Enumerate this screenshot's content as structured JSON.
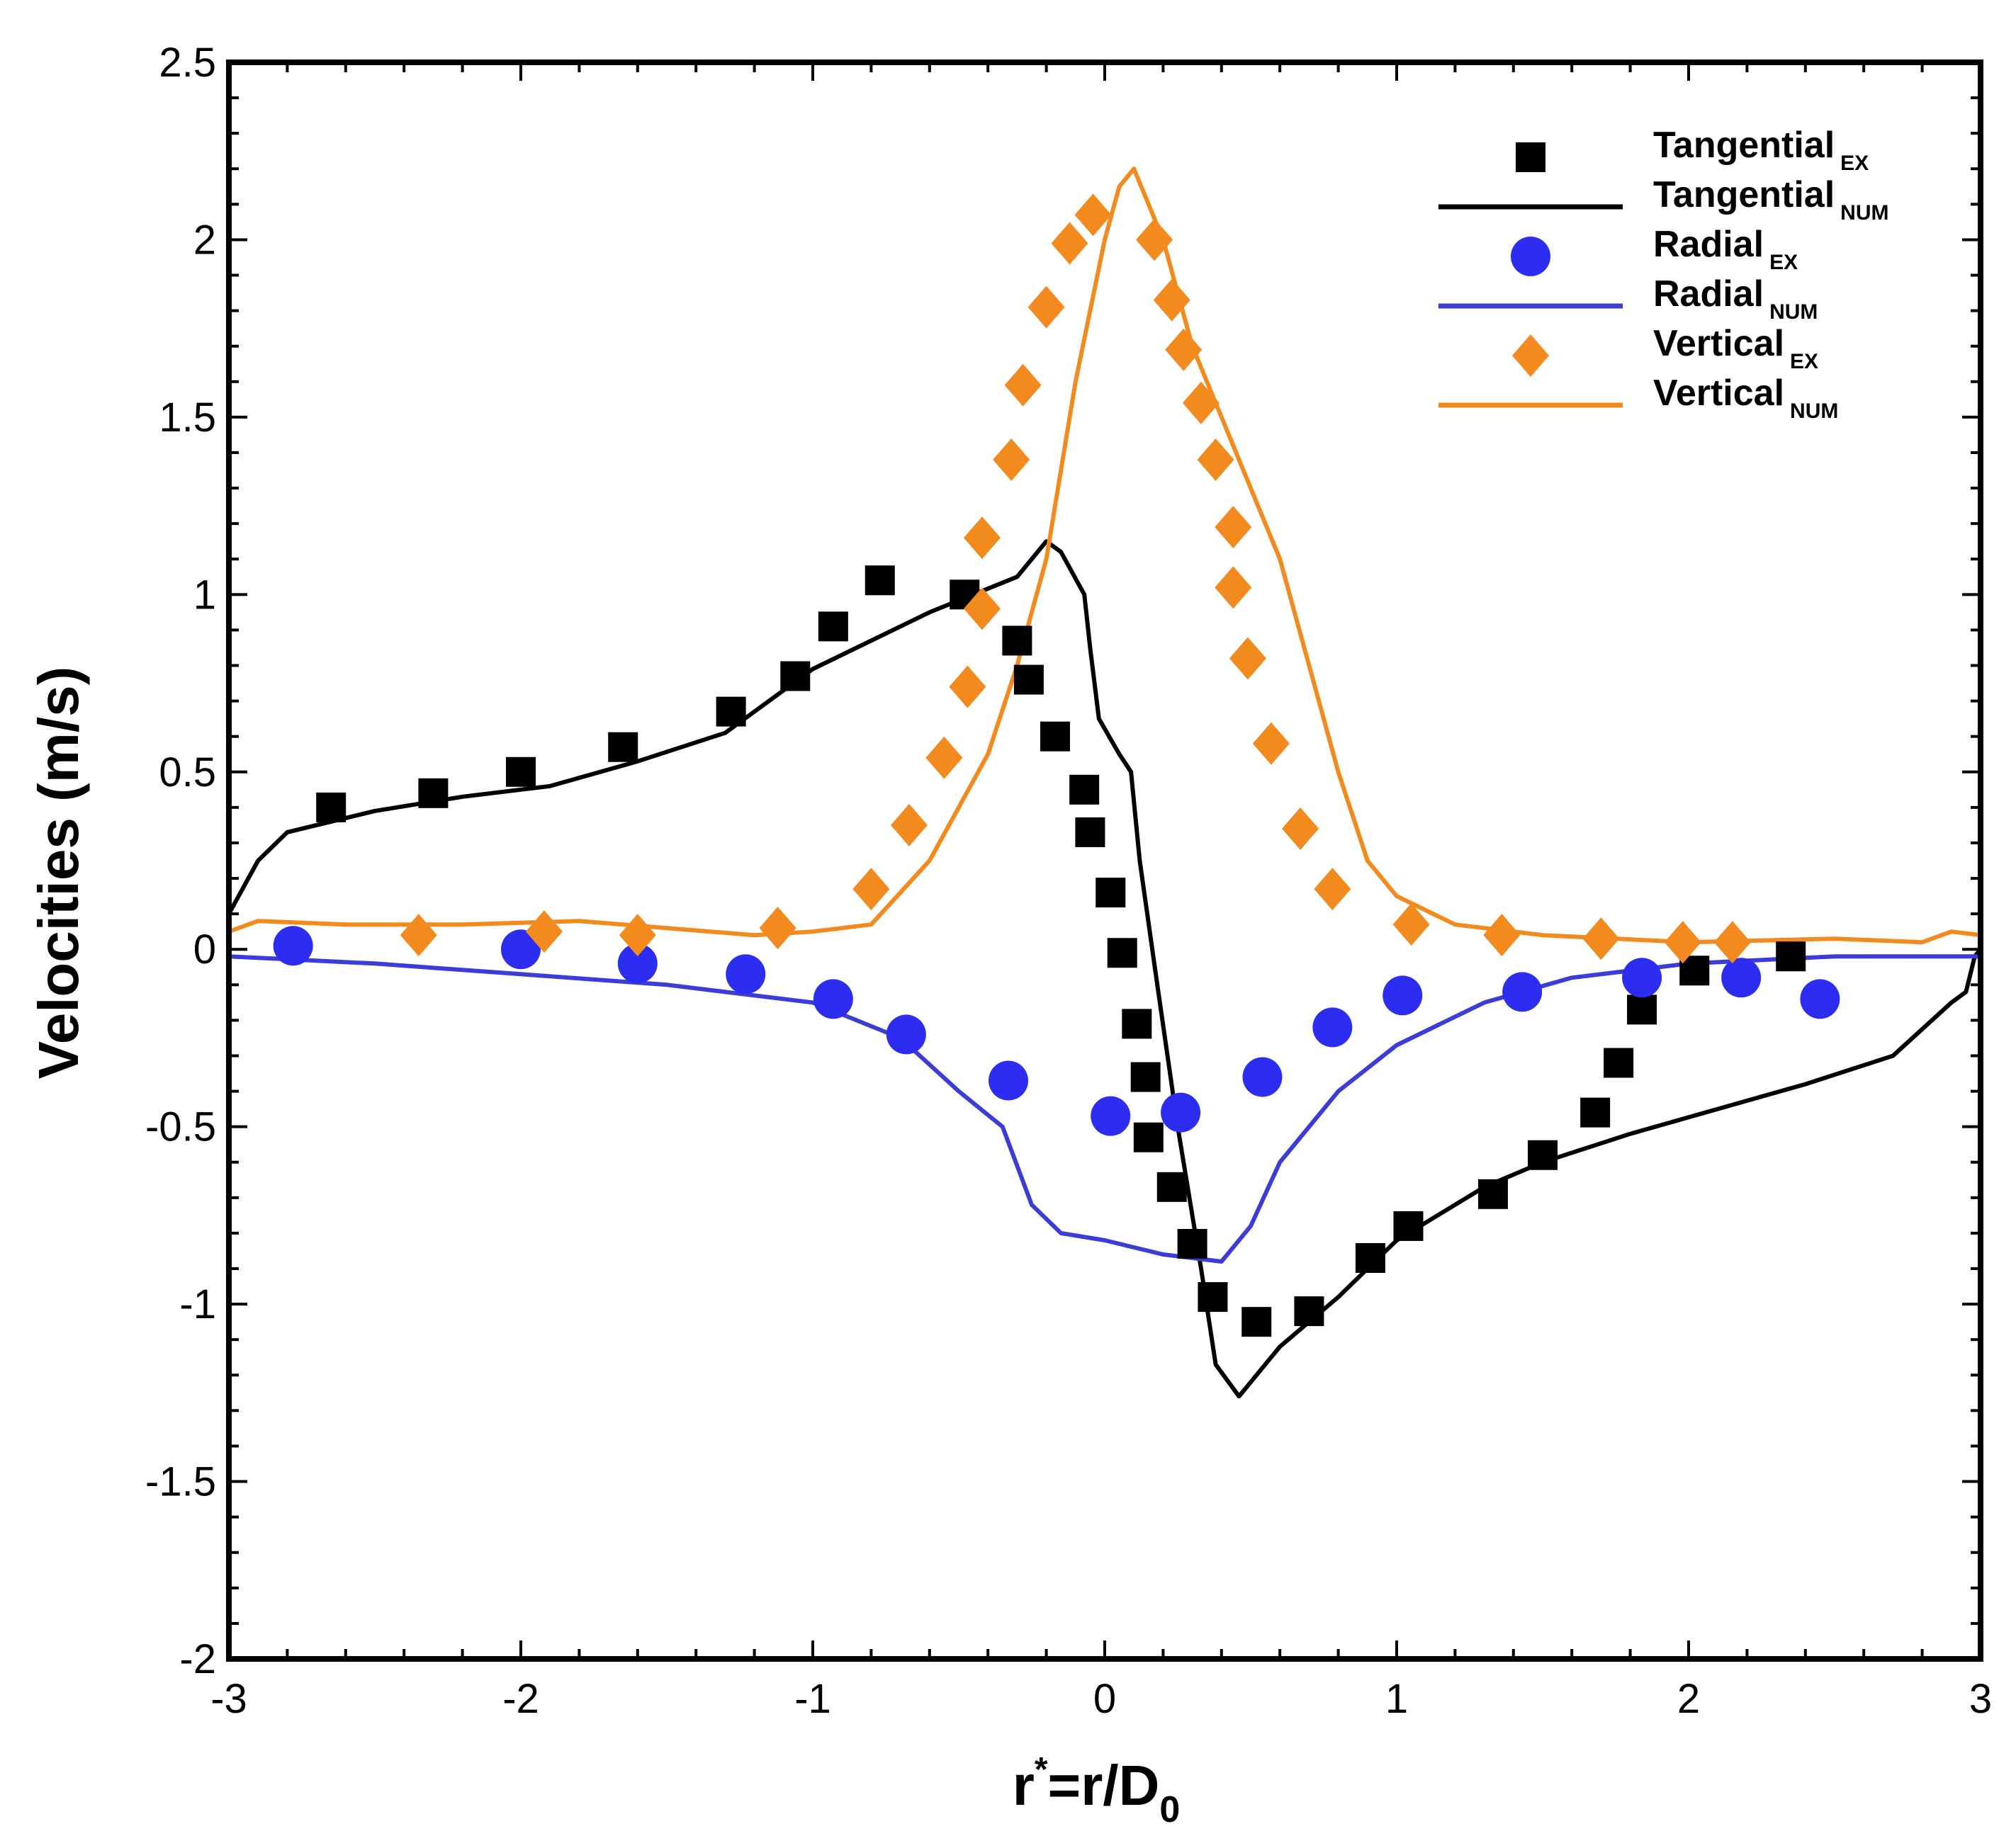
{
  "chart_data": {
    "type": "scatter",
    "xlabel": {
      "main": "r",
      "sup": "*",
      "mid": "=r/D",
      "sub": "0"
    },
    "ylabel": "Velocities (m/s)",
    "xlim": [
      -3,
      3
    ],
    "ylim": [
      -2,
      2.5
    ],
    "xticks": [
      "-3",
      "-2",
      "-1",
      "0",
      "1",
      "2",
      "3"
    ],
    "yticks": [
      "2.5",
      "2",
      "1.5",
      "1",
      "0.5",
      "0",
      "-0.5",
      "-1",
      "-1.5",
      "-2"
    ],
    "grid": false,
    "legend_position": "top-right",
    "series": [
      {
        "name": "Tangential",
        "name_sub": "EX",
        "kind": "marker",
        "marker": "square",
        "color": "#000000",
        "points": [
          [
            -2.65,
            0.4
          ],
          [
            -2.3,
            0.44
          ],
          [
            -2.0,
            0.5
          ],
          [
            -1.65,
            0.57
          ],
          [
            -1.28,
            0.67
          ],
          [
            -1.06,
            0.77
          ],
          [
            -0.93,
            0.91
          ],
          [
            -0.77,
            1.04
          ],
          [
            -0.48,
            1.0
          ],
          [
            -0.3,
            0.87
          ],
          [
            -0.26,
            0.76
          ],
          [
            -0.17,
            0.6
          ],
          [
            -0.07,
            0.45
          ],
          [
            -0.05,
            0.33
          ],
          [
            0.02,
            0.16
          ],
          [
            0.06,
            -0.01
          ],
          [
            0.11,
            -0.21
          ],
          [
            0.14,
            -0.36
          ],
          [
            0.15,
            -0.53
          ],
          [
            0.23,
            -0.67
          ],
          [
            0.3,
            -0.83
          ],
          [
            0.37,
            -0.98
          ],
          [
            0.52,
            -1.05
          ],
          [
            0.7,
            -1.02
          ],
          [
            0.91,
            -0.87
          ],
          [
            1.04,
            -0.78
          ],
          [
            1.33,
            -0.69
          ],
          [
            1.5,
            -0.58
          ],
          [
            1.68,
            -0.46
          ],
          [
            1.76,
            -0.32
          ],
          [
            1.84,
            -0.17
          ],
          [
            2.02,
            -0.06
          ],
          [
            2.35,
            -0.02
          ]
        ]
      },
      {
        "name": "Tangential",
        "name_sub": "NUM",
        "kind": "line",
        "color": "#000000",
        "points": [
          [
            -3.0,
            0.1
          ],
          [
            -2.9,
            0.25
          ],
          [
            -2.8,
            0.33
          ],
          [
            -2.5,
            0.39
          ],
          [
            -2.2,
            0.43
          ],
          [
            -1.9,
            0.46
          ],
          [
            -1.6,
            0.53
          ],
          [
            -1.3,
            0.61
          ],
          [
            -1.0,
            0.79
          ],
          [
            -0.6,
            0.95
          ],
          [
            -0.3,
            1.05
          ],
          [
            -0.2,
            1.15
          ],
          [
            -0.15,
            1.12
          ],
          [
            -0.07,
            1.0
          ],
          [
            -0.05,
            0.85
          ],
          [
            -0.02,
            0.65
          ],
          [
            0.05,
            0.55
          ],
          [
            0.09,
            0.5
          ],
          [
            0.12,
            0.25
          ],
          [
            0.18,
            -0.1
          ],
          [
            0.25,
            -0.5
          ],
          [
            0.33,
            -0.9
          ],
          [
            0.38,
            -1.17
          ],
          [
            0.46,
            -1.26
          ],
          [
            0.6,
            -1.12
          ],
          [
            0.8,
            -0.98
          ],
          [
            1.0,
            -0.82
          ],
          [
            1.3,
            -0.67
          ],
          [
            1.5,
            -0.6
          ],
          [
            1.8,
            -0.52
          ],
          [
            2.1,
            -0.45
          ],
          [
            2.4,
            -0.38
          ],
          [
            2.7,
            -0.3
          ],
          [
            2.9,
            -0.15
          ],
          [
            2.95,
            -0.12
          ],
          [
            2.98,
            -0.02
          ],
          [
            3.0,
            0.0
          ]
        ]
      },
      {
        "name": "Radial",
        "name_sub": "EX",
        "kind": "marker",
        "marker": "circle",
        "color": "#2d2df2",
        "points": [
          [
            -2.78,
            0.01
          ],
          [
            -2.0,
            0.0
          ],
          [
            -1.6,
            -0.04
          ],
          [
            -1.23,
            -0.07
          ],
          [
            -0.93,
            -0.14
          ],
          [
            -0.68,
            -0.24
          ],
          [
            -0.33,
            -0.37
          ],
          [
            0.02,
            -0.47
          ],
          [
            0.26,
            -0.46
          ],
          [
            0.54,
            -0.36
          ],
          [
            0.78,
            -0.22
          ],
          [
            1.02,
            -0.13
          ],
          [
            1.43,
            -0.12
          ],
          [
            1.84,
            -0.08
          ],
          [
            2.18,
            -0.08
          ],
          [
            2.45,
            -0.14
          ]
        ]
      },
      {
        "name": "Radial",
        "name_sub": "NUM",
        "kind": "line",
        "color": "#3c3cd8",
        "points": [
          [
            -3.0,
            -0.02
          ],
          [
            -2.5,
            -0.04
          ],
          [
            -2.0,
            -0.07
          ],
          [
            -1.5,
            -0.1
          ],
          [
            -1.0,
            -0.15
          ],
          [
            -0.7,
            -0.25
          ],
          [
            -0.5,
            -0.4
          ],
          [
            -0.35,
            -0.5
          ],
          [
            -0.25,
            -0.72
          ],
          [
            -0.15,
            -0.8
          ],
          [
            0.0,
            -0.82
          ],
          [
            0.2,
            -0.86
          ],
          [
            0.4,
            -0.88
          ],
          [
            0.5,
            -0.78
          ],
          [
            0.6,
            -0.6
          ],
          [
            0.8,
            -0.4
          ],
          [
            1.0,
            -0.27
          ],
          [
            1.3,
            -0.15
          ],
          [
            1.6,
            -0.08
          ],
          [
            2.0,
            -0.04
          ],
          [
            2.5,
            -0.02
          ],
          [
            3.0,
            -0.02
          ]
        ]
      },
      {
        "name": "Vertical",
        "name_sub": "EX",
        "kind": "marker",
        "marker": "diamond",
        "color": "#f28a1e",
        "points": [
          [
            -2.35,
            0.04
          ],
          [
            -1.92,
            0.05
          ],
          [
            -1.6,
            0.04
          ],
          [
            -1.12,
            0.06
          ],
          [
            -0.8,
            0.17
          ],
          [
            -0.67,
            0.35
          ],
          [
            -0.55,
            0.54
          ],
          [
            -0.47,
            0.74
          ],
          [
            -0.42,
            0.96
          ],
          [
            -0.42,
            1.16
          ],
          [
            -0.32,
            1.38
          ],
          [
            -0.28,
            1.59
          ],
          [
            -0.2,
            1.81
          ],
          [
            -0.12,
            1.99
          ],
          [
            -0.04,
            2.07
          ],
          [
            0.17,
            2.0
          ],
          [
            0.23,
            1.83
          ],
          [
            0.27,
            1.69
          ],
          [
            0.33,
            1.54
          ],
          [
            0.38,
            1.38
          ],
          [
            0.44,
            1.19
          ],
          [
            0.44,
            1.02
          ],
          [
            0.49,
            0.82
          ],
          [
            0.57,
            0.58
          ],
          [
            0.67,
            0.34
          ],
          [
            0.78,
            0.17
          ],
          [
            1.05,
            0.07
          ],
          [
            1.36,
            0.04
          ],
          [
            1.7,
            0.03
          ],
          [
            1.98,
            0.02
          ],
          [
            2.15,
            0.02
          ]
        ]
      },
      {
        "name": "Vertical",
        "name_sub": "NUM",
        "kind": "line",
        "color": "#f28a1e",
        "points": [
          [
            -3.0,
            0.05
          ],
          [
            -2.9,
            0.08
          ],
          [
            -2.6,
            0.07
          ],
          [
            -2.2,
            0.07
          ],
          [
            -1.8,
            0.08
          ],
          [
            -1.5,
            0.06
          ],
          [
            -1.2,
            0.04
          ],
          [
            -1.0,
            0.05
          ],
          [
            -0.8,
            0.07
          ],
          [
            -0.6,
            0.25
          ],
          [
            -0.4,
            0.55
          ],
          [
            -0.3,
            0.8
          ],
          [
            -0.2,
            1.1
          ],
          [
            -0.1,
            1.6
          ],
          [
            0.0,
            2.0
          ],
          [
            0.05,
            2.15
          ],
          [
            0.1,
            2.2
          ],
          [
            0.2,
            2.0
          ],
          [
            0.3,
            1.7
          ],
          [
            0.4,
            1.5
          ],
          [
            0.5,
            1.3
          ],
          [
            0.6,
            1.1
          ],
          [
            0.7,
            0.8
          ],
          [
            0.8,
            0.5
          ],
          [
            0.9,
            0.25
          ],
          [
            1.0,
            0.15
          ],
          [
            1.2,
            0.07
          ],
          [
            1.5,
            0.04
          ],
          [
            2.0,
            0.02
          ],
          [
            2.5,
            0.03
          ],
          [
            2.8,
            0.02
          ],
          [
            2.9,
            0.05
          ],
          [
            3.0,
            0.04
          ]
        ]
      }
    ]
  }
}
